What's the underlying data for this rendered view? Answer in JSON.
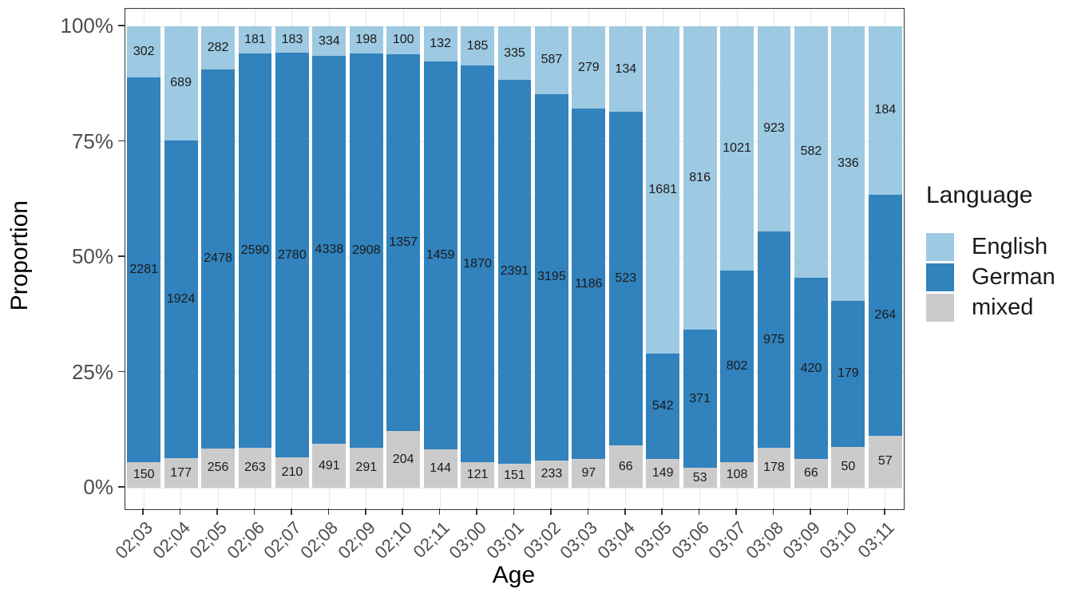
{
  "theme": {
    "background": "#ffffff",
    "panel_border": "#333333",
    "grid_major": "#e6e6e6",
    "grid_minor": "#f2f2f2",
    "axis_text": "#4d4d4d",
    "axis_title": "#000000",
    "segment_label_text": "#1a1a1a",
    "tick_mark": "#333333"
  },
  "chart_data": {
    "type": "bar",
    "variant": "stacked-proportion",
    "title": "",
    "xlabel": "Age",
    "ylabel": "Proportion",
    "legend_title": "Language",
    "legend_position": "right",
    "grid": true,
    "ylim_percent": [
      0,
      100
    ],
    "y_tick_percents": [
      0,
      25,
      50,
      75,
      100
    ],
    "y_tick_labels": [
      "0%",
      "25%",
      "50%",
      "75%",
      "100%"
    ],
    "y_minor_tick_percents": [
      12.5,
      37.5,
      62.5,
      87.5
    ],
    "categories": [
      "02;03",
      "02;04",
      "02;05",
      "02;06",
      "02;07",
      "02;08",
      "02;09",
      "02;10",
      "02;11",
      "03;00",
      "03;01",
      "03;02",
      "03;03",
      "03;04",
      "03;05",
      "03;06",
      "03;07",
      "03;08",
      "03;09",
      "03;10",
      "03;11"
    ],
    "stack_order_bottom_to_top": [
      "mixed",
      "German",
      "English"
    ],
    "series": [
      {
        "name": "English",
        "color": "#9dc9e2",
        "values": [
          302,
          689,
          282,
          181,
          183,
          334,
          198,
          100,
          132,
          185,
          335,
          587,
          279,
          134,
          1681,
          816,
          1021,
          923,
          582,
          336,
          184
        ]
      },
      {
        "name": "German",
        "color": "#3182bd",
        "values": [
          2281,
          1924,
          2478,
          2590,
          2780,
          4338,
          2908,
          1357,
          1459,
          1870,
          2391,
          3195,
          1186,
          523,
          542,
          371,
          802,
          975,
          420,
          179,
          264
        ]
      },
      {
        "name": "mixed",
        "color": "#cbcbcb",
        "values": [
          150,
          177,
          256,
          263,
          210,
          491,
          291,
          204,
          144,
          121,
          151,
          233,
          97,
          66,
          149,
          53,
          108,
          178,
          66,
          50,
          57
        ]
      }
    ],
    "segment_labels": "raw counts printed at the center of each bar segment"
  }
}
